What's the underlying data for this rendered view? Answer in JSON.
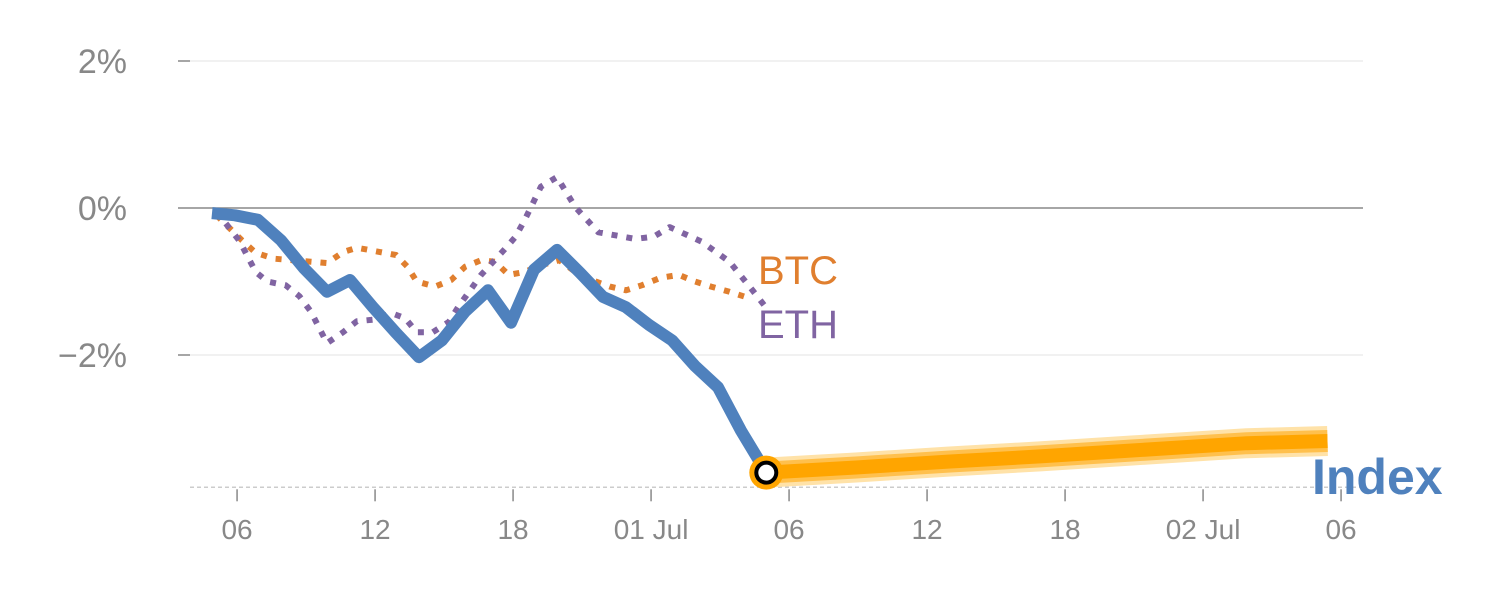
{
  "chart_data": {
    "type": "line",
    "title": "",
    "xlabel": "",
    "ylabel": "",
    "ylim": [
      -3.8,
      2
    ],
    "yticks": [
      {
        "value": 2,
        "label": "2%"
      },
      {
        "value": 0,
        "label": "0%"
      },
      {
        "value": -2,
        "label": "−2%"
      }
    ],
    "xticks": [
      {
        "t": 1.09,
        "label": "06"
      },
      {
        "t": 7.09,
        "label": "12"
      },
      {
        "t": 13.09,
        "label": "18"
      },
      {
        "t": 19.09,
        "label": "01 Jul"
      },
      {
        "t": 25.09,
        "label": "06"
      },
      {
        "t": 31.09,
        "label": "12"
      },
      {
        "t": 37.09,
        "label": "18"
      },
      {
        "t": 43.09,
        "label": "02 Jul"
      },
      {
        "t": 49.09,
        "label": "06"
      }
    ],
    "grid": true,
    "series": [
      {
        "name": "Index",
        "label": "Index",
        "color": "#4F81BD",
        "style": "solid",
        "points": [
          [
            0,
            -0.07
          ],
          [
            1,
            -0.1
          ],
          [
            2,
            -0.16
          ],
          [
            3,
            -0.44
          ],
          [
            4,
            -0.82
          ],
          [
            5,
            -1.14
          ],
          [
            6,
            -0.98
          ],
          [
            7,
            -1.35
          ],
          [
            8,
            -1.7
          ],
          [
            9,
            -2.03
          ],
          [
            10,
            -1.8
          ],
          [
            11,
            -1.41
          ],
          [
            12,
            -1.12
          ],
          [
            13,
            -1.56
          ],
          [
            14,
            -0.84
          ],
          [
            15,
            -0.57
          ],
          [
            16,
            -0.88
          ],
          [
            17,
            -1.21
          ],
          [
            18,
            -1.35
          ],
          [
            19,
            -1.59
          ],
          [
            20,
            -1.8
          ],
          [
            21,
            -2.15
          ],
          [
            22,
            -2.44
          ],
          [
            23,
            -3.03
          ],
          [
            24.1,
            -3.6
          ]
        ]
      },
      {
        "name": "Index forecast",
        "color": "#FFA500",
        "style": "band",
        "points": [
          [
            24.1,
            -3.6
          ],
          [
            28,
            -3.53
          ],
          [
            32,
            -3.45
          ],
          [
            36,
            -3.38
          ],
          [
            40,
            -3.3
          ],
          [
            45,
            -3.2
          ],
          [
            48.5,
            -3.17
          ]
        ]
      },
      {
        "name": "BTC",
        "label": "BTC",
        "color": "#E07F2F",
        "style": "dotted",
        "points": [
          [
            0.2,
            -0.1
          ],
          [
            1.3,
            -0.44
          ],
          [
            1.9,
            -0.61
          ],
          [
            2.7,
            -0.69
          ],
          [
            3.5,
            -0.71
          ],
          [
            4.3,
            -0.73
          ],
          [
            5,
            -0.75
          ],
          [
            5.7,
            -0.6
          ],
          [
            6.3,
            -0.54
          ],
          [
            8,
            -0.64
          ],
          [
            8.5,
            -0.8
          ],
          [
            8.9,
            -1.0
          ],
          [
            9.7,
            -1.07
          ],
          [
            10.4,
            -0.98
          ],
          [
            11,
            -0.8
          ],
          [
            11.7,
            -0.71
          ],
          [
            12.3,
            -0.73
          ],
          [
            12.9,
            -0.91
          ],
          [
            13.6,
            -0.87
          ],
          [
            14.3,
            -0.78
          ],
          [
            15.1,
            -0.71
          ],
          [
            15.8,
            -0.87
          ],
          [
            16.5,
            -0.98
          ],
          [
            17.3,
            -1.07
          ],
          [
            18,
            -1.12
          ],
          [
            18.7,
            -1.05
          ],
          [
            19.5,
            -0.95
          ],
          [
            20.3,
            -0.91
          ],
          [
            21,
            -1.0
          ],
          [
            21.7,
            -1.07
          ],
          [
            22.5,
            -1.14
          ],
          [
            23.3,
            -1.22
          ]
        ]
      },
      {
        "name": "ETH",
        "label": "ETH",
        "color": "#8064A2",
        "style": "dotted",
        "points": [
          [
            0.2,
            -0.05
          ],
          [
            1.2,
            -0.45
          ],
          [
            1.9,
            -0.87
          ],
          [
            2.4,
            -1.0
          ],
          [
            3.2,
            -1.05
          ],
          [
            3.8,
            -1.2
          ],
          [
            4.3,
            -1.41
          ],
          [
            5,
            -1.84
          ],
          [
            5.7,
            -1.69
          ],
          [
            6.3,
            -1.54
          ],
          [
            7,
            -1.52
          ],
          [
            7.8,
            -1.43
          ],
          [
            8.4,
            -1.5
          ],
          [
            8.9,
            -1.69
          ],
          [
            9.6,
            -1.69
          ],
          [
            10.3,
            -1.55
          ],
          [
            10.7,
            -1.35
          ],
          [
            11.7,
            -0.91
          ],
          [
            12.7,
            -0.57
          ],
          [
            13.2,
            -0.39
          ],
          [
            13.6,
            -0.16
          ],
          [
            14.3,
            0.29
          ],
          [
            15,
            0.42
          ],
          [
            15.8,
            0.01
          ],
          [
            16.8,
            -0.33
          ],
          [
            18.4,
            -0.42
          ],
          [
            19.2,
            -0.39
          ],
          [
            19.9,
            -0.26
          ],
          [
            21.3,
            -0.46
          ],
          [
            22.5,
            -0.73
          ],
          [
            23.5,
            -1.12
          ],
          [
            24,
            -1.32
          ]
        ]
      }
    ],
    "marker": {
      "t": 24.1,
      "value": -3.6
    }
  }
}
